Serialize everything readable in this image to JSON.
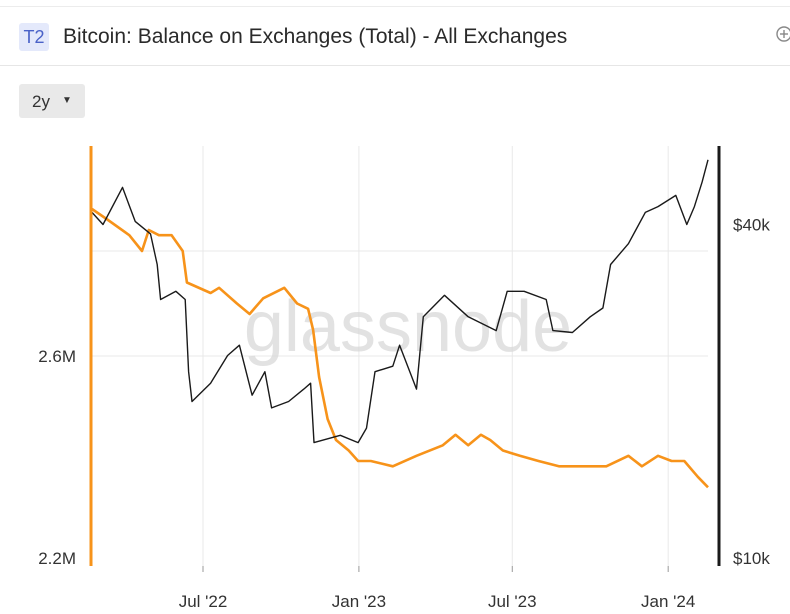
{
  "header": {
    "badge": "T2",
    "title": "Bitcoin: Balance on Exchanges (Total) - All Exchanges",
    "add_icon": "plus-circle-icon"
  },
  "controls": {
    "range_label": "2y",
    "caret_icon": "caret-down-icon"
  },
  "watermark": "glassnode",
  "chart_data": {
    "type": "line",
    "title": "Bitcoin: Balance on Exchanges (Total) - All Exchanges",
    "x_ticks": [
      "Jul '22",
      "Jan '23",
      "Jul '23",
      "Jan '24"
    ],
    "x_tick_dates": [
      "2022-07-01",
      "2023-01-01",
      "2023-07-01",
      "2024-01-01"
    ],
    "x_range": [
      "2022-02-20",
      "2024-02-17"
    ],
    "y_left": {
      "ticks": [
        "2.2M",
        "2.6M"
      ],
      "values": [
        2.2,
        2.6
      ],
      "range": [
        2.2,
        3.0
      ],
      "unit": "M"
    },
    "y_right": {
      "ticks": [
        "$10k",
        "$40k"
      ],
      "values": [
        10000,
        40000
      ],
      "range": [
        10000,
        55000
      ],
      "scale": "log"
    },
    "grid": true,
    "colors": {
      "balance": "#f7931a",
      "price": "#1a1a1a",
      "grid": "#e8e8e8"
    },
    "series": [
      {
        "key": "balance",
        "axis": "left",
        "color": "#f7931a",
        "points": [
          [
            "2022-02-20",
            2.88
          ],
          [
            "2022-03-10",
            2.86
          ],
          [
            "2022-04-05",
            2.83
          ],
          [
            "2022-04-20",
            2.8
          ],
          [
            "2022-04-28",
            2.84
          ],
          [
            "2022-05-10",
            2.83
          ],
          [
            "2022-05-25",
            2.83
          ],
          [
            "2022-06-07",
            2.8
          ],
          [
            "2022-06-12",
            2.74
          ],
          [
            "2022-07-10",
            2.72
          ],
          [
            "2022-07-20",
            2.73
          ],
          [
            "2022-08-10",
            2.7
          ],
          [
            "2022-08-25",
            2.68
          ],
          [
            "2022-09-10",
            2.71
          ],
          [
            "2022-10-05",
            2.73
          ],
          [
            "2022-10-20",
            2.7
          ],
          [
            "2022-11-02",
            2.69
          ],
          [
            "2022-11-08",
            2.65
          ],
          [
            "2022-11-15",
            2.56
          ],
          [
            "2022-11-25",
            2.48
          ],
          [
            "2022-12-05",
            2.44
          ],
          [
            "2022-12-20",
            2.42
          ],
          [
            "2022-12-31",
            2.4
          ],
          [
            "2023-01-15",
            2.4
          ],
          [
            "2023-02-10",
            2.39
          ],
          [
            "2023-03-10",
            2.41
          ],
          [
            "2023-04-10",
            2.43
          ],
          [
            "2023-04-25",
            2.45
          ],
          [
            "2023-05-10",
            2.43
          ],
          [
            "2023-05-25",
            2.45
          ],
          [
            "2023-06-05",
            2.44
          ],
          [
            "2023-06-20",
            2.42
          ],
          [
            "2023-07-10",
            2.41
          ],
          [
            "2023-08-01",
            2.4
          ],
          [
            "2023-08-25",
            2.39
          ],
          [
            "2023-09-20",
            2.39
          ],
          [
            "2023-10-20",
            2.39
          ],
          [
            "2023-11-15",
            2.41
          ],
          [
            "2023-12-01",
            2.39
          ],
          [
            "2023-12-20",
            2.41
          ],
          [
            "2024-01-05",
            2.4
          ],
          [
            "2024-01-20",
            2.4
          ],
          [
            "2024-02-05",
            2.37
          ],
          [
            "2024-02-17",
            2.35
          ]
        ]
      },
      {
        "key": "price",
        "axis": "right",
        "color": "#1a1a1a",
        "points": [
          [
            "2022-02-20",
            42000
          ],
          [
            "2022-03-05",
            40000
          ],
          [
            "2022-03-28",
            46500
          ],
          [
            "2022-04-12",
            40500
          ],
          [
            "2022-04-30",
            38500
          ],
          [
            "2022-05-08",
            34000
          ],
          [
            "2022-05-12",
            29500
          ],
          [
            "2022-05-30",
            30500
          ],
          [
            "2022-06-10",
            29500
          ],
          [
            "2022-06-14",
            22000
          ],
          [
            "2022-06-18",
            19500
          ],
          [
            "2022-07-10",
            21000
          ],
          [
            "2022-07-30",
            23500
          ],
          [
            "2022-08-13",
            24500
          ],
          [
            "2022-08-28",
            20000
          ],
          [
            "2022-09-12",
            22000
          ],
          [
            "2022-09-20",
            19000
          ],
          [
            "2022-10-10",
            19500
          ],
          [
            "2022-10-28",
            20500
          ],
          [
            "2022-11-05",
            21000
          ],
          [
            "2022-11-09",
            16500
          ],
          [
            "2022-12-10",
            17000
          ],
          [
            "2022-12-31",
            16500
          ],
          [
            "2023-01-10",
            17500
          ],
          [
            "2023-01-20",
            22000
          ],
          [
            "2023-02-10",
            22500
          ],
          [
            "2023-02-18",
            24500
          ],
          [
            "2023-03-10",
            20500
          ],
          [
            "2023-03-18",
            27500
          ],
          [
            "2023-04-12",
            30000
          ],
          [
            "2023-05-10",
            27500
          ],
          [
            "2023-06-12",
            26000
          ],
          [
            "2023-06-25",
            30500
          ],
          [
            "2023-07-15",
            30500
          ],
          [
            "2023-08-10",
            29500
          ],
          [
            "2023-08-18",
            26000
          ],
          [
            "2023-09-10",
            25800
          ],
          [
            "2023-10-01",
            27500
          ],
          [
            "2023-10-16",
            28500
          ],
          [
            "2023-10-25",
            34000
          ],
          [
            "2023-11-15",
            37000
          ],
          [
            "2023-12-05",
            42000
          ],
          [
            "2023-12-20",
            43000
          ],
          [
            "2024-01-10",
            45000
          ],
          [
            "2024-01-23",
            40000
          ],
          [
            "2024-02-01",
            43000
          ],
          [
            "2024-02-10",
            47500
          ],
          [
            "2024-02-17",
            52000
          ]
        ]
      }
    ]
  }
}
